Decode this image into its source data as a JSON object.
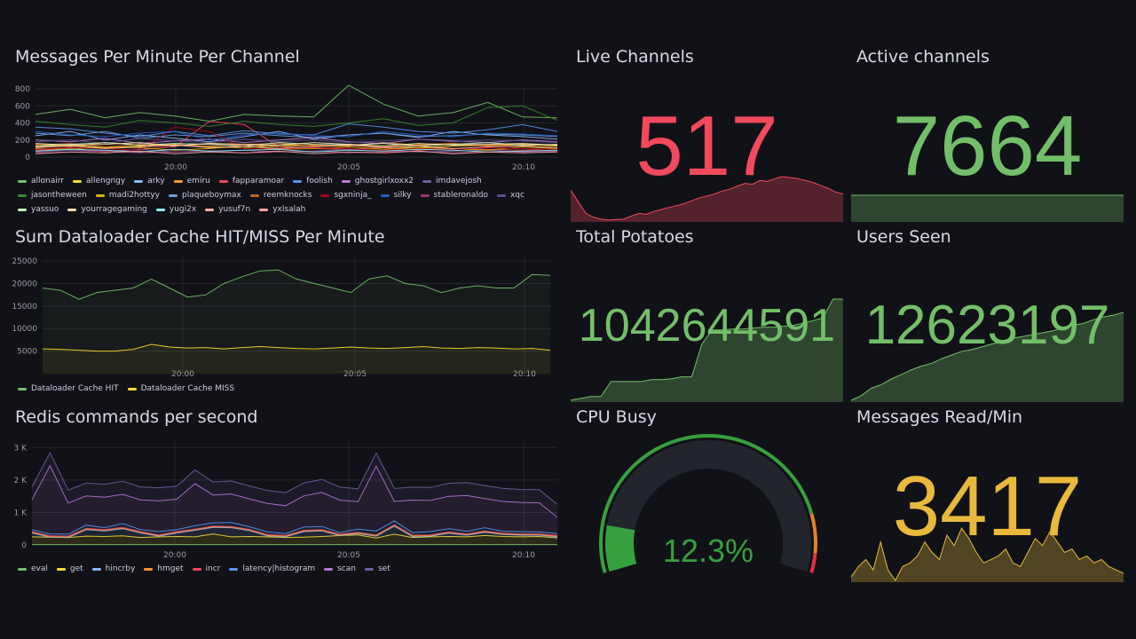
{
  "panels": {
    "messages": {
      "title": "Messages Per Minute Per Channel"
    },
    "dataloader": {
      "title": "Sum Dataloader Cache HIT/MISS Per Minute"
    },
    "redis": {
      "title": "Redis commands per second"
    },
    "live": {
      "title": "Live Channels",
      "value": "517",
      "color": "#f2495c",
      "spark": [
        180,
        120,
        60,
        40,
        30,
        25,
        28,
        30,
        45,
        60,
        55,
        70,
        80,
        90,
        100,
        110,
        125,
        140,
        150,
        160,
        175,
        185,
        200,
        215,
        210,
        230,
        225,
        240,
        250,
        245,
        240,
        230,
        220,
        205,
        190,
        170,
        160
      ]
    },
    "active": {
      "title": "Active channels",
      "value": "7664",
      "color": "#73bf69",
      "spark": [
        7660,
        7660,
        7660,
        7660,
        7664,
        7664
      ]
    },
    "potatoes": {
      "title": "Total Potatoes",
      "value": "1042644591",
      "color": "#73bf69",
      "spark": [
        10,
        12,
        14,
        14,
        30,
        30,
        30,
        30,
        32,
        32,
        33,
        35,
        35,
        70,
        85,
        85,
        86,
        86,
        87,
        88,
        88,
        89,
        90,
        92,
        95,
        98,
        118,
        118
      ]
    },
    "users": {
      "title": "Users Seen",
      "value": "12623197",
      "color": "#73bf69",
      "spark": [
        5,
        10,
        18,
        22,
        28,
        33,
        38,
        42,
        45,
        50,
        54,
        58,
        60,
        63,
        66,
        68,
        72,
        74,
        76,
        78,
        80,
        84,
        86,
        88,
        92,
        95,
        97,
        100
      ]
    },
    "cpu": {
      "title": "CPU Busy",
      "value": "12.3%",
      "percent": 12.3,
      "color": "#37a03e",
      "thresholds": [
        {
          "from": 0,
          "color": "#37a03e"
        },
        {
          "from": 85,
          "color": "#e87e24"
        },
        {
          "from": 95,
          "color": "#e02f44"
        }
      ]
    },
    "messages_read": {
      "title": "Messages Read/Min",
      "value": "3417",
      "color": "#e8b93c",
      "spark": [
        20,
        35,
        45,
        30,
        70,
        30,
        15,
        35,
        40,
        50,
        70,
        55,
        45,
        80,
        65,
        90,
        75,
        55,
        40,
        45,
        50,
        60,
        40,
        35,
        55,
        75,
        65,
        85,
        70,
        55,
        60,
        45,
        50,
        40,
        45,
        35,
        30,
        25
      ]
    }
  },
  "chart_data": [
    {
      "type": "line",
      "title": "Messages Per Minute Per Channel",
      "x": [
        "19:56",
        "19:57",
        "19:58",
        "19:59",
        "20:00",
        "20:01",
        "20:02",
        "20:03",
        "20:04",
        "20:05",
        "20:06",
        "20:07",
        "20:08",
        "20:09",
        "20:10",
        "20:11"
      ],
      "x_ticks": [
        "20:00",
        "20:05",
        "20:10"
      ],
      "y_ticks": [
        "0",
        "200",
        "400",
        "600",
        "800"
      ],
      "ylim": [
        0,
        800
      ],
      "series": [
        {
          "name": "allonairr",
          "color": "#73bf69",
          "values": [
            500,
            560,
            460,
            520,
            480,
            420,
            500,
            480,
            470,
            840,
            620,
            480,
            520,
            640,
            470,
            460
          ]
        },
        {
          "name": "allengngy",
          "color": "#fade2a",
          "values": [
            120,
            140,
            110,
            130,
            150,
            120,
            110,
            140,
            130,
            150,
            120,
            110,
            130,
            140,
            150,
            130
          ]
        },
        {
          "name": "arky",
          "color": "#8ab8ff",
          "values": [
            250,
            300,
            200,
            260,
            220,
            180,
            240,
            300,
            210,
            260,
            280,
            230,
            300,
            260,
            240,
            210
          ]
        },
        {
          "name": "emiru",
          "color": "#ff9830",
          "values": [
            150,
            120,
            170,
            140,
            130,
            160,
            150,
            120,
            140,
            130,
            170,
            140,
            160,
            130,
            150,
            140
          ]
        },
        {
          "name": "fapparamoar",
          "color": "#f2495c",
          "values": [
            80,
            100,
            60,
            90,
            120,
            420,
            380,
            120,
            100,
            90,
            110,
            80,
            100,
            90,
            80,
            100
          ]
        },
        {
          "name": "foolish",
          "color": "#5794f2",
          "values": [
            350,
            330,
            280,
            240,
            300,
            250,
            310,
            270,
            260,
            390,
            350,
            300,
            280,
            320,
            380,
            300
          ]
        },
        {
          "name": "ghostgirlxoxx2",
          "color": "#b877d9",
          "values": [
            200,
            180,
            220,
            160,
            190,
            210,
            170,
            200,
            230,
            180,
            160,
            210,
            190,
            170,
            200,
            180
          ]
        },
        {
          "name": "imdavejosh",
          "color": "#705da0",
          "values": [
            60,
            80,
            70,
            90,
            60,
            70,
            80,
            60,
            70,
            90,
            80,
            60,
            70,
            80,
            60,
            70
          ]
        },
        {
          "name": "jasontheween",
          "color": "#37872d",
          "values": [
            420,
            380,
            350,
            430,
            400,
            360,
            420,
            380,
            360,
            400,
            450,
            370,
            400,
            580,
            600,
            430
          ]
        },
        {
          "name": "madi2hottyy",
          "color": "#e0b400",
          "values": [
            100,
            90,
            120,
            110,
            80,
            100,
            130,
            90,
            100,
            120,
            90,
            110,
            100,
            80,
            120,
            100
          ]
        },
        {
          "name": "plaqueboymax",
          "color": "#6e9fd8",
          "values": [
            280,
            250,
            300,
            220,
            260,
            240,
            280,
            250,
            230,
            260,
            280,
            240,
            250,
            270,
            260,
            240
          ]
        },
        {
          "name": "reemknocks",
          "color": "#c4641e",
          "values": [
            140,
            160,
            120,
            150,
            140,
            130,
            150,
            160,
            130,
            140,
            120,
            150,
            160,
            140,
            130,
            150
          ]
        },
        {
          "name": "sgxninja_",
          "color": "#ad0317",
          "values": [
            90,
            110,
            100,
            80,
            350,
            300,
            100,
            90,
            110,
            100,
            80,
            100,
            90,
            110,
            100,
            90
          ]
        },
        {
          "name": "silky",
          "color": "#1f60c4",
          "values": [
            300,
            260,
            240,
            280,
            300,
            200,
            260,
            280,
            250,
            240,
            300,
            260,
            240,
            280,
            270,
            250
          ]
        },
        {
          "name": "stableronaldo",
          "color": "#a0356f",
          "values": [
            50,
            60,
            70,
            50,
            60,
            70,
            50,
            60,
            70,
            50,
            60,
            70,
            50,
            60,
            70,
            60
          ]
        },
        {
          "name": "xqc",
          "color": "#5b4f8f",
          "values": [
            180,
            200,
            160,
            220,
            190,
            170,
            210,
            180,
            200,
            170,
            190,
            210,
            180,
            200,
            190,
            170
          ]
        },
        {
          "name": "yassuo",
          "color": "#c8f2c2",
          "values": [
            130,
            150,
            170,
            140,
            160,
            150,
            130,
            170,
            150,
            140,
            160,
            130,
            150,
            170,
            140,
            150
          ]
        },
        {
          "name": "yourragegaming",
          "color": "#ffe6b0",
          "values": [
            160,
            140,
            150,
            170,
            130,
            160,
            150,
            140,
            170,
            150,
            130,
            160,
            140,
            150,
            160,
            140
          ]
        },
        {
          "name": "yugi2x",
          "color": "#8ef0f0",
          "values": [
            70,
            90,
            80,
            60,
            90,
            70,
            80,
            90,
            60,
            80,
            70,
            90,
            80,
            60,
            70,
            80
          ]
        },
        {
          "name": "yusuf7n",
          "color": "#ffb0a0",
          "values": [
            110,
            130,
            100,
            120,
            140,
            110,
            130,
            100,
            120,
            140,
            110,
            130,
            100,
            120,
            130,
            110
          ]
        },
        {
          "name": "yxlsalah",
          "color": "#f7a0a8",
          "values": [
            40,
            60,
            50,
            70,
            40,
            60,
            50,
            70,
            40,
            60,
            50,
            70,
            40,
            60,
            50,
            60
          ]
        }
      ]
    },
    {
      "type": "area",
      "title": "Sum Dataloader Cache HIT/MISS Per Minute",
      "x_ticks": [
        "20:00",
        "20:05",
        "20:10"
      ],
      "y_ticks": [
        "5000",
        "10000",
        "15000",
        "20000",
        "25000"
      ],
      "ylim": [
        0,
        26000
      ],
      "series": [
        {
          "name": "Dataloader Cache HIT",
          "color": "#73bf69",
          "values": [
            19000,
            18500,
            16500,
            18000,
            18500,
            19000,
            21000,
            19000,
            17000,
            17500,
            20000,
            21500,
            22800,
            23000,
            21000,
            20000,
            19000,
            18000,
            21000,
            21700,
            20000,
            19500,
            18000,
            19000,
            19500,
            19000,
            19000,
            22000,
            21800
          ]
        },
        {
          "name": "Dataloader Cache MISS",
          "color": "#fade2a",
          "values": [
            5500,
            5400,
            5200,
            5000,
            5000,
            5400,
            6500,
            5900,
            5700,
            5800,
            5500,
            5800,
            6000,
            5800,
            5600,
            5500,
            5700,
            5900,
            5700,
            5600,
            5800,
            6000,
            5700,
            5600,
            5800,
            5700,
            5500,
            5600,
            5200
          ]
        }
      ]
    },
    {
      "type": "area",
      "stacked": true,
      "title": "Redis commands per second",
      "x_ticks": [
        "20:00",
        "20:05",
        "20:10"
      ],
      "y_ticks": [
        "0",
        "1 K",
        "2 K",
        "3 K"
      ],
      "ylim": [
        0,
        3200
      ],
      "series": [
        {
          "name": "eval",
          "color": "#73bf69",
          "values": [
            10,
            10,
            10,
            10,
            10,
            10,
            10,
            10,
            10,
            10,
            10,
            10,
            10,
            10,
            10,
            10,
            10,
            10,
            10,
            10,
            10,
            10,
            10,
            10,
            10,
            10,
            10,
            10,
            10,
            10
          ]
        },
        {
          "name": "get",
          "color": "#fade2a",
          "values": [
            240,
            230,
            220,
            260,
            250,
            270,
            220,
            240,
            250,
            240,
            330,
            240,
            250,
            240,
            220,
            230,
            250,
            280,
            300,
            200,
            320,
            220,
            240,
            250,
            240,
            280,
            250,
            240,
            250,
            210
          ]
        },
        {
          "name": "hincrby",
          "color": "#8ab8ff",
          "values": [
            120,
            0,
            0,
            200,
            170,
            220,
            140,
            20,
            110,
            200,
            200,
            280,
            180,
            30,
            20,
            170,
            170,
            0,
            40,
            60,
            250,
            30,
            20,
            100,
            50,
            100,
            60,
            50,
            40,
            30
          ]
        },
        {
          "name": "hmget",
          "color": "#ff9830",
          "values": [
            20,
            20,
            20,
            20,
            20,
            20,
            20,
            20,
            20,
            20,
            20,
            20,
            20,
            20,
            20,
            20,
            20,
            20,
            20,
            20,
            20,
            20,
            20,
            20,
            20,
            20,
            20,
            20,
            20,
            20
          ]
        },
        {
          "name": "incr",
          "color": "#f2495c",
          "values": [
            20,
            20,
            20,
            20,
            20,
            20,
            20,
            20,
            20,
            20,
            20,
            20,
            20,
            20,
            20,
            20,
            20,
            20,
            20,
            20,
            20,
            20,
            20,
            20,
            20,
            20,
            20,
            20,
            20,
            20
          ]
        },
        {
          "name": "latency|histogram",
          "color": "#5794f2",
          "values": [
            60,
            60,
            60,
            100,
            60,
            120,
            60,
            100,
            60,
            100,
            100,
            120,
            80,
            80,
            60,
            100,
            100,
            50,
            100,
            120,
            120,
            80,
            100,
            100,
            80,
            100,
            60,
            70,
            60,
            60
          ]
        },
        {
          "name": "scan",
          "color": "#b877d9",
          "values": [
            920,
            2100,
            960,
            900,
            940,
            900,
            920,
            950,
            940,
            1300,
            860,
            880,
            860,
            880,
            860,
            960,
            1050,
            1000,
            840,
            2000,
            600,
            1000,
            960,
            1000,
            1100,
            900,
            920,
            900,
            900,
            500
          ]
        },
        {
          "name": "set",
          "color": "#705da0",
          "values": [
            400,
            400,
            400,
            400,
            400,
            400,
            400,
            400,
            400,
            420,
            400,
            400,
            400,
            400,
            400,
            400,
            400,
            400,
            400,
            400,
            400,
            400,
            400,
            400,
            400,
            400,
            400,
            400,
            400,
            400
          ]
        }
      ]
    }
  ]
}
